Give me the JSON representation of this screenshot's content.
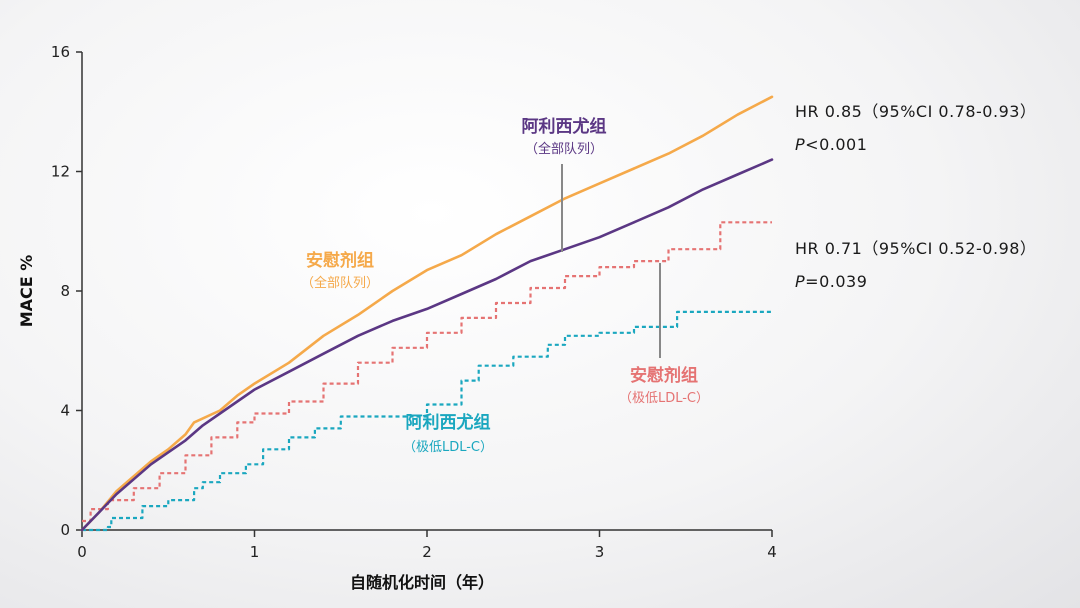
{
  "chart_data": {
    "type": "line",
    "xlabel": "自随机化时间（年）",
    "ylabel": "MACE %",
    "xlim": [
      0,
      4
    ],
    "ylim": [
      0,
      16
    ],
    "x_ticks": [
      "0",
      "1",
      "2",
      "3",
      "4"
    ],
    "y_ticks": [
      "0",
      "4",
      "8",
      "12",
      "16"
    ],
    "grid": false,
    "series": [
      {
        "id": "placebo_all",
        "color": "#f5a94a",
        "dash": false,
        "points": [
          [
            0,
            0
          ],
          [
            0.1,
            0.6
          ],
          [
            0.2,
            1.3
          ],
          [
            0.3,
            1.8
          ],
          [
            0.4,
            2.3
          ],
          [
            0.5,
            2.7
          ],
          [
            0.6,
            3.2
          ],
          [
            0.65,
            3.6
          ],
          [
            0.8,
            4.0
          ],
          [
            0.9,
            4.5
          ],
          [
            1.0,
            4.9
          ],
          [
            1.2,
            5.6
          ],
          [
            1.4,
            6.5
          ],
          [
            1.6,
            7.2
          ],
          [
            1.8,
            8.0
          ],
          [
            2.0,
            8.7
          ],
          [
            2.2,
            9.2
          ],
          [
            2.4,
            9.9
          ],
          [
            2.6,
            10.5
          ],
          [
            2.8,
            11.1
          ],
          [
            3.0,
            11.6
          ],
          [
            3.2,
            12.1
          ],
          [
            3.4,
            12.6
          ],
          [
            3.6,
            13.2
          ],
          [
            3.8,
            13.9
          ],
          [
            4.0,
            14.5
          ]
        ]
      },
      {
        "id": "arimoclomol_all",
        "color": "#5b3784",
        "dash": false,
        "points": [
          [
            0,
            0
          ],
          [
            0.1,
            0.6
          ],
          [
            0.2,
            1.2
          ],
          [
            0.3,
            1.7
          ],
          [
            0.4,
            2.2
          ],
          [
            0.5,
            2.6
          ],
          [
            0.6,
            3.0
          ],
          [
            0.7,
            3.5
          ],
          [
            0.8,
            3.9
          ],
          [
            0.9,
            4.3
          ],
          [
            1.0,
            4.7
          ],
          [
            1.2,
            5.3
          ],
          [
            1.4,
            5.9
          ],
          [
            1.6,
            6.5
          ],
          [
            1.8,
            7.0
          ],
          [
            2.0,
            7.4
          ],
          [
            2.2,
            7.9
          ],
          [
            2.4,
            8.4
          ],
          [
            2.6,
            9.0
          ],
          [
            2.8,
            9.4
          ],
          [
            3.0,
            9.8
          ],
          [
            3.2,
            10.3
          ],
          [
            3.4,
            10.8
          ],
          [
            3.6,
            11.4
          ],
          [
            3.8,
            11.9
          ],
          [
            4.0,
            12.4
          ]
        ]
      },
      {
        "id": "placebo_low",
        "color": "#e57373",
        "dash": true,
        "points": [
          [
            0,
            0.3
          ],
          [
            0.05,
            0.7
          ],
          [
            0.15,
            1.0
          ],
          [
            0.3,
            1.4
          ],
          [
            0.45,
            1.9
          ],
          [
            0.6,
            2.5
          ],
          [
            0.75,
            3.1
          ],
          [
            0.9,
            3.6
          ],
          [
            1.0,
            3.9
          ],
          [
            1.2,
            4.3
          ],
          [
            1.4,
            4.9
          ],
          [
            1.6,
            5.6
          ],
          [
            1.8,
            6.1
          ],
          [
            2.0,
            6.6
          ],
          [
            2.2,
            7.1
          ],
          [
            2.4,
            7.6
          ],
          [
            2.6,
            8.1
          ],
          [
            2.8,
            8.5
          ],
          [
            3.0,
            8.8
          ],
          [
            3.2,
            9.0
          ],
          [
            3.4,
            9.4
          ],
          [
            3.5,
            9.4
          ],
          [
            3.7,
            10.3
          ],
          [
            4.0,
            10.3
          ]
        ]
      },
      {
        "id": "arimoclomol_low",
        "color": "#1aa7bf",
        "dash": true,
        "points": [
          [
            0,
            0
          ],
          [
            0.15,
            0.1
          ],
          [
            0.17,
            0.4
          ],
          [
            0.33,
            0.4
          ],
          [
            0.35,
            0.8
          ],
          [
            0.5,
            1.0
          ],
          [
            0.65,
            1.4
          ],
          [
            0.7,
            1.6
          ],
          [
            0.8,
            1.9
          ],
          [
            0.95,
            2.2
          ],
          [
            1.05,
            2.7
          ],
          [
            1.2,
            3.1
          ],
          [
            1.35,
            3.4
          ],
          [
            1.5,
            3.8
          ],
          [
            1.8,
            3.8
          ],
          [
            2.0,
            4.2
          ],
          [
            2.2,
            5.0
          ],
          [
            2.3,
            5.5
          ],
          [
            2.5,
            5.8
          ],
          [
            2.7,
            6.2
          ],
          [
            2.8,
            6.5
          ],
          [
            3.0,
            6.6
          ],
          [
            3.2,
            6.8
          ],
          [
            3.4,
            6.8
          ],
          [
            3.45,
            7.3
          ],
          [
            4.0,
            7.3
          ]
        ]
      }
    ],
    "annotations": [
      {
        "id": "placebo_all",
        "title": "安慰剂组",
        "subtitle": "（全部队列）",
        "color": "#f5a94a"
      },
      {
        "id": "arimoclomol_all",
        "title": "阿利西尤组",
        "subtitle": "（全部队列）",
        "color": "#5b3784"
      },
      {
        "id": "placebo_low",
        "title": "安慰剂组",
        "subtitle": "（极低LDL-C）",
        "color": "#e57373"
      },
      {
        "id": "arimoclomol_low",
        "title": "阿利西尤组",
        "subtitle": "（极低LDL-C）",
        "color": "#1aa7bf"
      }
    ],
    "stats": [
      {
        "hr": "HR 0.85（95%CI 0.78-0.93）",
        "p_label": "P",
        "p_value": "<0.001"
      },
      {
        "hr": "HR 0.71（95%CI 0.52-0.98）",
        "p_label": "P",
        "p_value": "=0.039"
      }
    ]
  }
}
